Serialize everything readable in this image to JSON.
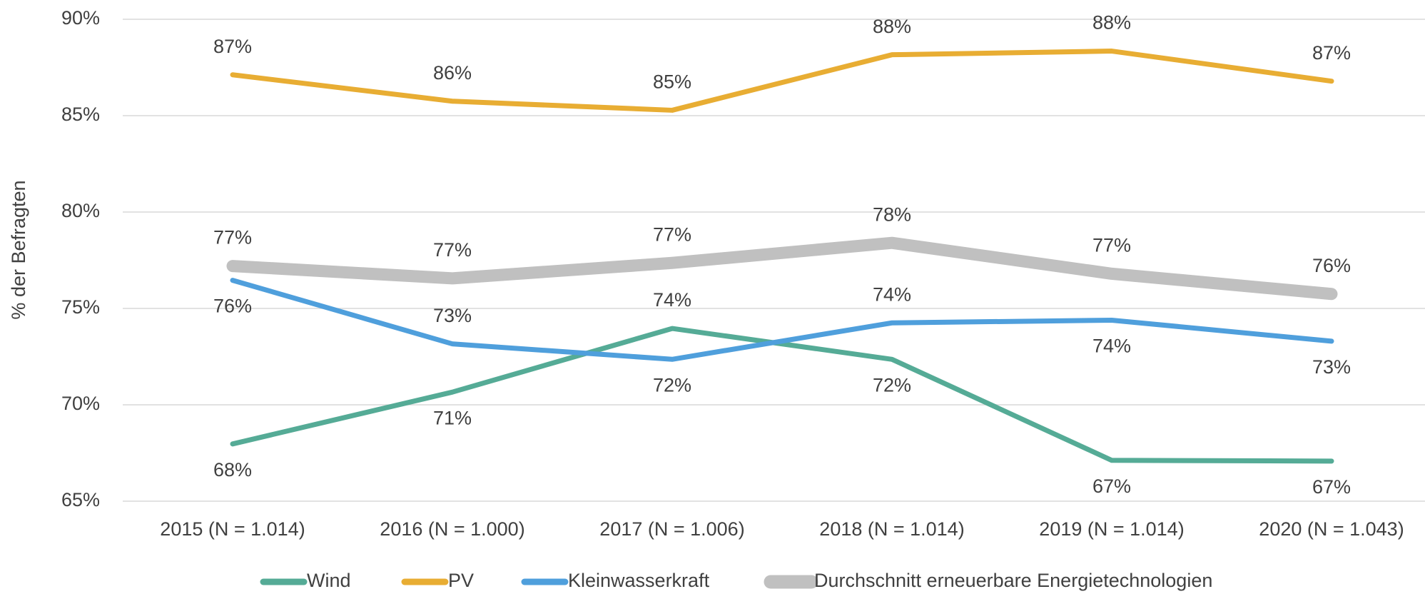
{
  "chart_data": {
    "type": "line",
    "y_axis_label": "% der Befragten",
    "categories": [
      "2015 (N = 1.014)",
      "2016 (N = 1.000)",
      "2017 (N = 1.006)",
      "2018 (N = 1.014)",
      "2019 (N = 1.014)",
      "2020 (N = 1.043)"
    ],
    "series": [
      {
        "name": "Wind",
        "color": "#55ab96",
        "values": [
          67.97,
          70.66,
          73.96,
          72.36,
          67.12,
          67.08
        ],
        "value_labels": [
          "68%",
          "71%",
          "74%",
          "72%",
          "67%",
          "67%"
        ]
      },
      {
        "name": "PV",
        "color": "#e8ad33",
        "values": [
          87.12,
          85.75,
          85.28,
          88.16,
          88.35,
          86.79
        ],
        "value_labels": [
          "87%",
          "86%",
          "85%",
          "88%",
          "88%",
          "87%"
        ]
      },
      {
        "name": "Kleinwasserkraft",
        "color": "#4f9fdc",
        "values": [
          76.46,
          73.16,
          72.36,
          74.25,
          74.39,
          73.3
        ],
        "value_labels": [
          "76%",
          "73%",
          "72%",
          "74%",
          "74%",
          "73%"
        ]
      },
      {
        "name": "Durchschnitt erneuerbare Energietechnologien",
        "color": "#c0c0c0",
        "values": [
          77.2,
          76.56,
          77.36,
          78.4,
          76.8,
          75.75
        ],
        "value_labels": [
          "77%",
          "77%",
          "77%",
          "78%",
          "77%",
          "76%"
        ]
      }
    ],
    "ylim": [
      65,
      90
    ],
    "yticks": [
      {
        "value": 65,
        "label": "65%"
      },
      {
        "value": 70,
        "label": "70%"
      },
      {
        "value": 75,
        "label": "75%"
      },
      {
        "value": 80,
        "label": "80%"
      },
      {
        "value": 85,
        "label": "85%"
      },
      {
        "value": 90,
        "label": "90%"
      }
    ],
    "grid": true,
    "legend": "bottom"
  }
}
